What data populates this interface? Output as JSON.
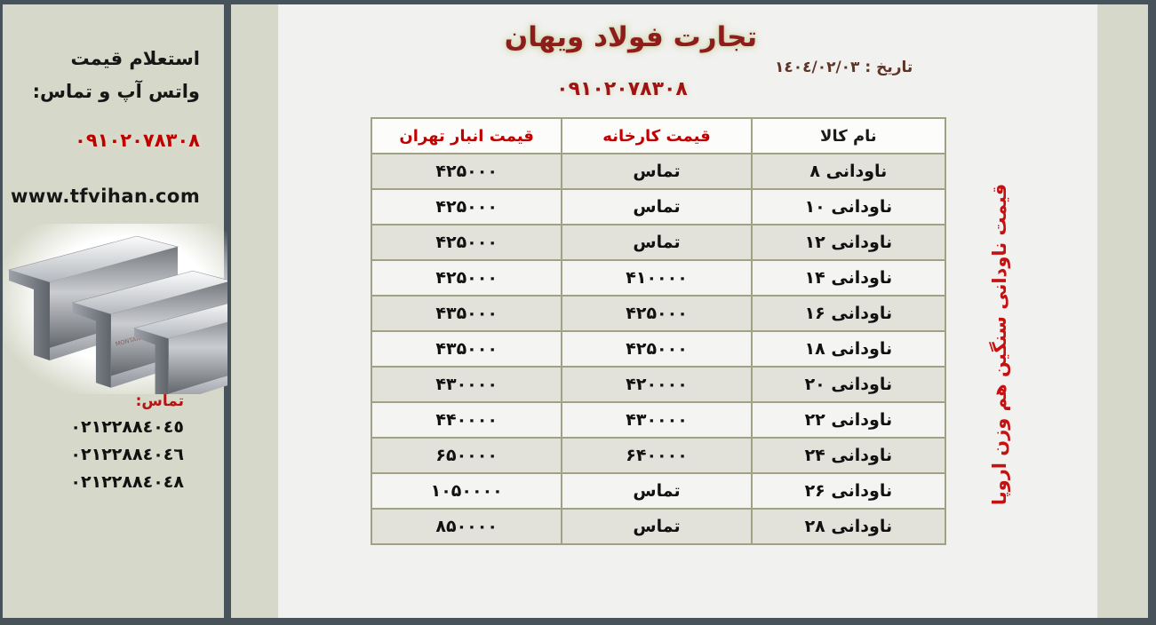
{
  "header": {
    "title": "تجارت فولاد ویهان",
    "phone": "۰۹۱۰۲۰۷۸۳۰۸",
    "date": "تاریخ : ١٤٠٤/٠٢/٠٣"
  },
  "side_note": "قیمت ناودانی سنگین هم وزن اروپا",
  "sidebar": {
    "inquiry_line1": "استعلام قیمت",
    "inquiry_line2": "واتس آپ و تماس:",
    "mobile": "۰۹۱۰۲۰۷۸۳۰۸",
    "website": "www.tfvihan.com",
    "image_watermark": "MONTANSTAHL",
    "contact_label": "تماس:",
    "phones": [
      "٠٢١٢٢٨٨٤٠٤٥",
      "٠٢١٢٢٨٨٤٠٤٦",
      "٠٢١٢٢٨٨٤٠٤٨"
    ]
  },
  "table": {
    "headers": {
      "name": "نام کالا",
      "factory": "قیمت کارخانه",
      "warehouse": "قیمت انبار تهران"
    },
    "rows": [
      {
        "name": "ناودانی ۸",
        "factory": "تماس",
        "warehouse": "۴۲۵۰۰۰"
      },
      {
        "name": "ناودانی ۱۰",
        "factory": "تماس",
        "warehouse": "۴۲۵۰۰۰"
      },
      {
        "name": "ناودانی ۱۲",
        "factory": "تماس",
        "warehouse": "۴۲۵۰۰۰"
      },
      {
        "name": "ناودانی ۱۴",
        "factory": "۴۱۰۰۰۰",
        "warehouse": "۴۲۵۰۰۰"
      },
      {
        "name": "ناودانی ۱۶",
        "factory": "۴۲۵۰۰۰",
        "warehouse": "۴۳۵۰۰۰"
      },
      {
        "name": "ناودانی ۱۸",
        "factory": "۴۲۵۰۰۰",
        "warehouse": "۴۳۵۰۰۰"
      },
      {
        "name": "ناودانی ۲۰",
        "factory": "۴۲۰۰۰۰",
        "warehouse": "۴۳۰۰۰۰"
      },
      {
        "name": "ناودانی ۲۲",
        "factory": "۴۳۰۰۰۰",
        "warehouse": "۴۴۰۰۰۰"
      },
      {
        "name": "ناودانی ۲۴",
        "factory": "۶۴۰۰۰۰",
        "warehouse": "۶۵۰۰۰۰"
      },
      {
        "name": "ناودانی ۲۶",
        "factory": "تماس",
        "warehouse": "۱۰۵۰۰۰۰"
      },
      {
        "name": "ناودانی ۲۸",
        "factory": "تماس",
        "warehouse": "۸۵۰۰۰۰"
      }
    ]
  },
  "colors": {
    "accent_red": "#c00000",
    "title_maroon": "#8e1c1c",
    "date_brown": "#5d3426",
    "frame_dark": "#48525a",
    "sidebar_beige": "#d6d8c9",
    "panel_light": "#f1f1f0",
    "row_alt": "#e2e2db",
    "table_border": "#a1a183"
  }
}
